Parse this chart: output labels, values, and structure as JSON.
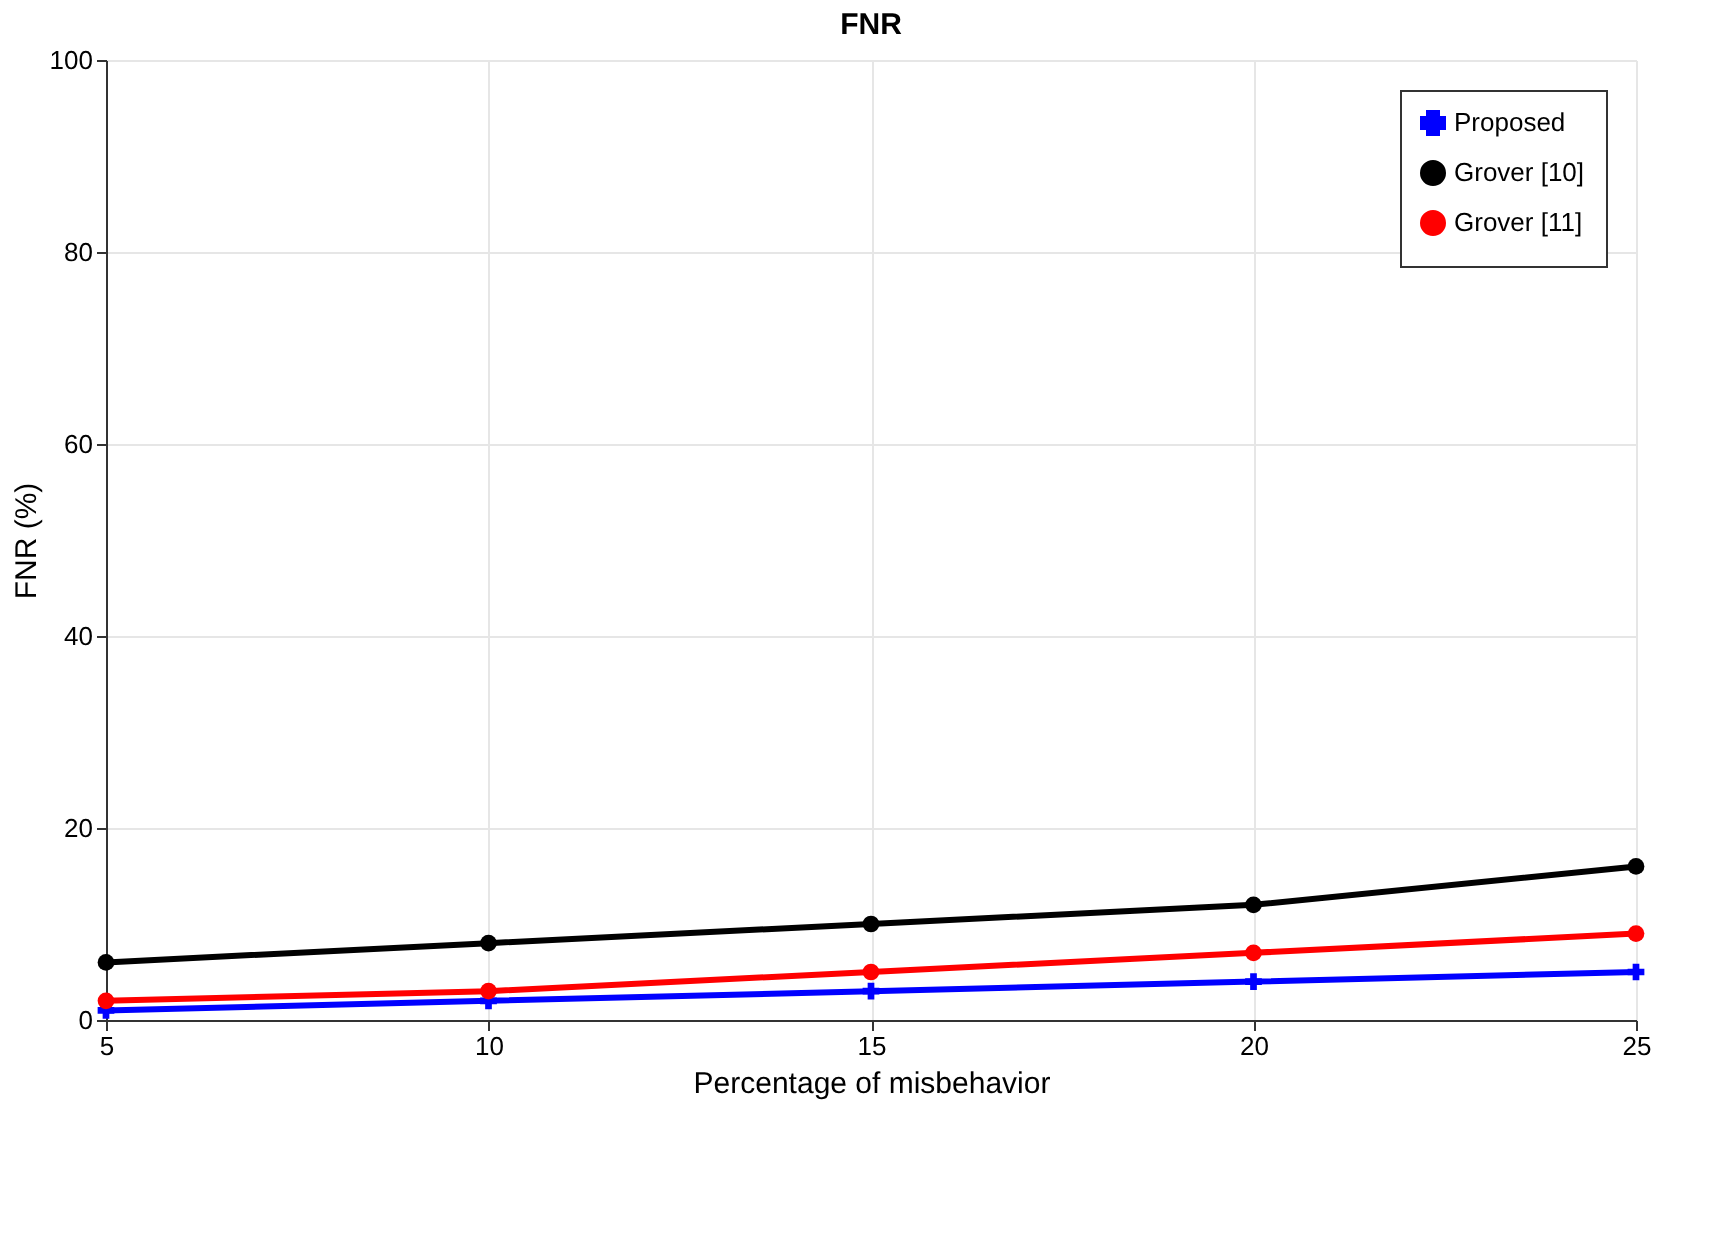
{
  "chart_data": {
    "type": "line",
    "title": "FNR",
    "xlabel": "Percentage of misbehavior",
    "ylabel": "FNR (%)",
    "x": [
      5,
      10,
      15,
      20,
      25
    ],
    "series": [
      {
        "name": "Proposed",
        "color": "#0000ff",
        "marker": "cross",
        "values": [
          1,
          2,
          3,
          4,
          5
        ]
      },
      {
        "name": "Grover [10]",
        "color": "#000000",
        "marker": "circle",
        "values": [
          6,
          8,
          10,
          12,
          16
        ]
      },
      {
        "name": "Grover [11]",
        "color": "#ff0000",
        "marker": "circle",
        "values": [
          2,
          3,
          5,
          7,
          9
        ]
      }
    ],
    "xlim": [
      5,
      25
    ],
    "xticks": [
      5,
      10,
      15,
      20,
      25
    ],
    "ylim": [
      0,
      100
    ],
    "yticks": [
      0,
      20,
      40,
      60,
      80,
      100
    ],
    "grid": true,
    "legend": "top right",
    "line_style": "solid"
  }
}
